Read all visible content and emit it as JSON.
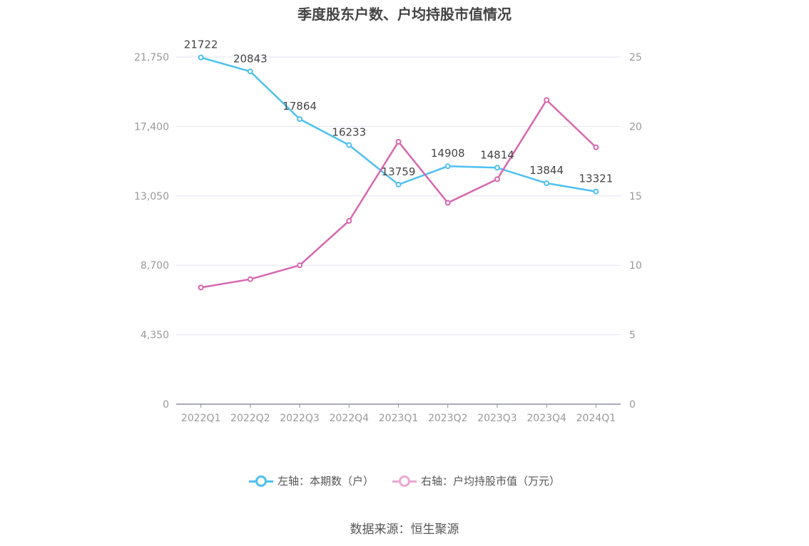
{
  "chart_data": {
    "type": "line",
    "title": "季度股东户数、户均持股市值情况",
    "categories": [
      "2022Q1",
      "2022Q2",
      "2022Q3",
      "2022Q4",
      "2023Q1",
      "2023Q2",
      "2023Q3",
      "2023Q4",
      "2024Q1"
    ],
    "left_axis": {
      "ticks": [
        "0",
        "4,350",
        "8,700",
        "13,050",
        "17,400",
        "21,750"
      ],
      "ylim": [
        0,
        21750
      ]
    },
    "right_axis": {
      "ticks": [
        "0",
        "5",
        "10",
        "15",
        "20",
        "25"
      ],
      "ylim": [
        0,
        25
      ]
    },
    "series": [
      {
        "name": "左轴：本期数（户）",
        "axis": "left",
        "color": "#4fc0f0",
        "values": [
          21722,
          20843,
          17864,
          16233,
          13759,
          14908,
          14814,
          13844,
          13321
        ],
        "labels": [
          "21722",
          "20843",
          "17864",
          "16233",
          "13759",
          "14908",
          "14814",
          "13844",
          "13321"
        ]
      },
      {
        "name": "右轴：户均持股市值（万元）",
        "axis": "right",
        "color": "#d668b0",
        "values": [
          8.4,
          9.0,
          10.0,
          13.2,
          18.9,
          14.5,
          16.2,
          21.9,
          18.5
        ]
      }
    ],
    "grid": true,
    "legend_position": "bottom"
  },
  "source": "数据来源：恒生聚源"
}
